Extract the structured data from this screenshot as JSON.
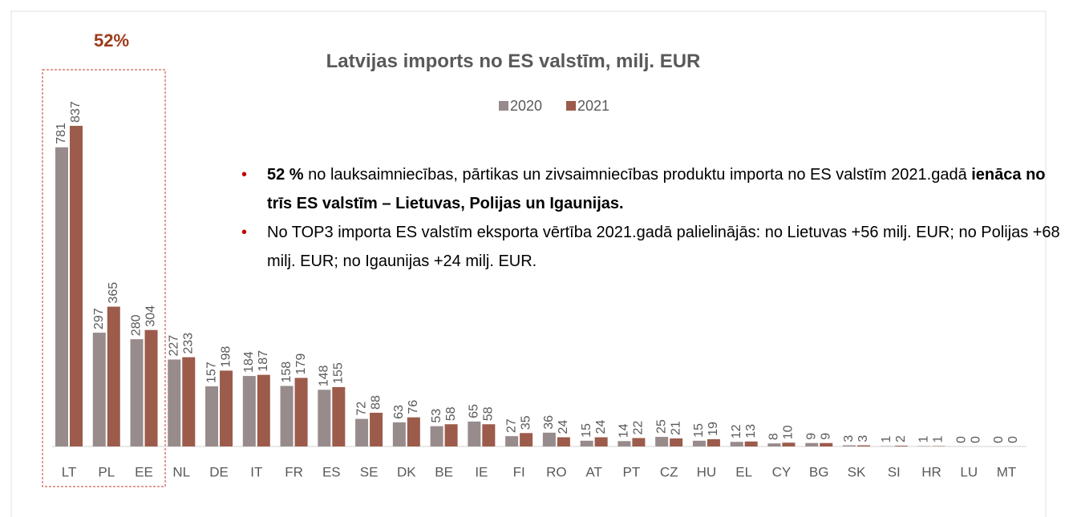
{
  "chart_data": {
    "type": "bar",
    "title": "Latvijas imports no ES valstīm, milj. EUR",
    "annotation": "52%",
    "categories": [
      "LT",
      "PL",
      "EE",
      "NL",
      "DE",
      "IT",
      "FR",
      "ES",
      "SE",
      "DK",
      "BE",
      "IE",
      "FI",
      "RO",
      "AT",
      "PT",
      "CZ",
      "HU",
      "EL",
      "CY",
      "BG",
      "SK",
      "SI",
      "HR",
      "LU",
      "MT"
    ],
    "series": [
      {
        "name": "2020",
        "color": "#988b8b",
        "values": [
          781,
          297,
          280,
          227,
          157,
          184,
          158,
          148,
          72,
          63,
          53,
          65,
          27,
          36,
          15,
          14,
          25,
          15,
          12,
          8,
          9,
          3,
          1,
          1,
          0,
          0
        ]
      },
      {
        "name": "2021",
        "color": "#9c5b4b",
        "values": [
          837,
          365,
          304,
          233,
          198,
          187,
          179,
          155,
          88,
          76,
          58,
          58,
          35,
          24,
          24,
          22,
          21,
          19,
          13,
          10,
          9,
          3,
          2,
          1,
          0,
          0
        ]
      }
    ],
    "bullets": [
      [
        {
          "text": "52 %",
          "bold": true
        },
        {
          "text": " no lauksaimniecības, pārtikas un zivsaimniecības produktu importa no ES valstīm 2021.gadā ",
          "bold": false
        },
        {
          "text": "ienāca no trīs ES valstīm – Lietuvas, Polijas un Igaunijas.",
          "bold": true
        }
      ],
      [
        {
          "text": "No TOP3 importa ES valstīm eksporta vērtība 2021.gadā palielinājās: no Lietuvas +56 milj. EUR; no Polijas +68 milj. EUR; no Igaunijas +24 milj. EUR.",
          "bold": false
        }
      ]
    ]
  }
}
